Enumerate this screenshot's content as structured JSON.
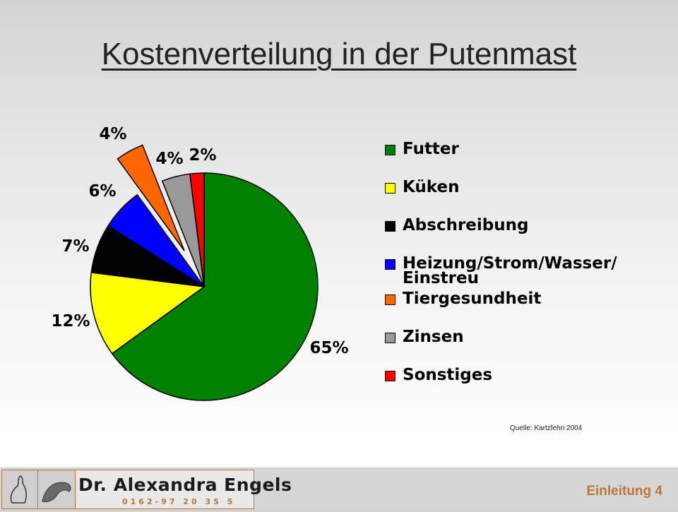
{
  "slide": {
    "title": "Kostenverteilung in der Putenmast",
    "source": "Quelle: Kartzfehn 2004"
  },
  "chart_data": {
    "type": "pie",
    "categories": [
      "Futter",
      "Küken",
      "Abschreibung",
      "Heizung/Strom/Wasser/Einstreu",
      "Tiergesundheit",
      "Zinsen",
      "Sonstiges"
    ],
    "values": [
      65,
      12,
      7,
      6,
      4,
      4,
      2
    ],
    "data_labels": [
      "65%",
      "12%",
      "7%",
      "6%",
      "4%",
      "4%",
      "2%"
    ],
    "colors": [
      "#008000",
      "#ffff00",
      "#000000",
      "#0000ff",
      "#ff6600",
      "#999999",
      "#ff0000"
    ],
    "exploded": [
      false,
      false,
      false,
      false,
      true,
      false,
      false
    ],
    "legend_placement": "right"
  },
  "legend": {
    "items": [
      {
        "lines": [
          "Futter"
        ],
        "color": "#008000"
      },
      {
        "lines": [
          "Küken"
        ],
        "color": "#ffff00"
      },
      {
        "lines": [
          "Abschreibung"
        ],
        "color": "#000000"
      },
      {
        "lines": [
          "Heizung/Strom/Wasser/",
          "Einstreu"
        ],
        "color": "#0000ff"
      },
      {
        "lines": [
          "Tiergesundheit"
        ],
        "color": "#ff6600"
      },
      {
        "lines": [
          "Zinsen"
        ],
        "color": "#999999"
      },
      {
        "lines": [
          "Sonstiges"
        ],
        "color": "#ff0000"
      }
    ]
  },
  "footer": {
    "logo_name": "Dr. Alexandra Engels",
    "logo_phone": "0162-97 20 35 5",
    "slide_label": "Einleitung 4"
  },
  "icons": {
    "logo_left": "bird-silhouette-icon",
    "logo_right": "turkey-head-icon"
  }
}
